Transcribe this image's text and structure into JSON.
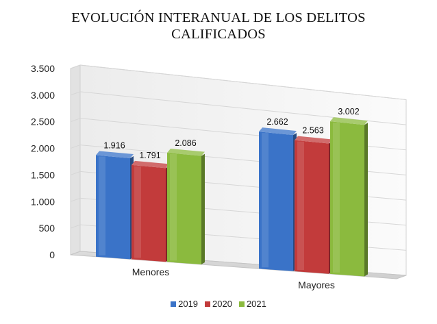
{
  "chart_data": {
    "type": "bar",
    "title_lines": [
      "EVOLUCIÓN INTERANUAL DE LOS DELITOS",
      "CALIFICADOS"
    ],
    "categories": [
      "Menores",
      "Mayores"
    ],
    "series": [
      {
        "name": "2019",
        "values": [
          1916,
          2662
        ],
        "labels": [
          "1.916",
          "2.662"
        ],
        "color": "#3a73c8"
      },
      {
        "name": "2020",
        "values": [
          1791,
          2563
        ],
        "labels": [
          "1.791",
          "2.563"
        ],
        "color": "#c23b3b"
      },
      {
        "name": "2021",
        "values": [
          2086,
          3002
        ],
        "labels": [
          "2.086",
          "3.002"
        ],
        "color": "#8bba3e"
      }
    ],
    "y_ticks": [
      {
        "value": 0,
        "label": "0"
      },
      {
        "value": 500,
        "label": "500"
      },
      {
        "value": 1000,
        "label": "1.000"
      },
      {
        "value": 1500,
        "label": "1.500"
      },
      {
        "value": 2000,
        "label": "2.000"
      },
      {
        "value": 2500,
        "label": "2.500"
      },
      {
        "value": 3000,
        "label": "3.000"
      },
      {
        "value": 3500,
        "label": "3.500"
      }
    ],
    "ylim": [
      0,
      3500
    ],
    "legend_position": "bottom",
    "grid": true
  }
}
